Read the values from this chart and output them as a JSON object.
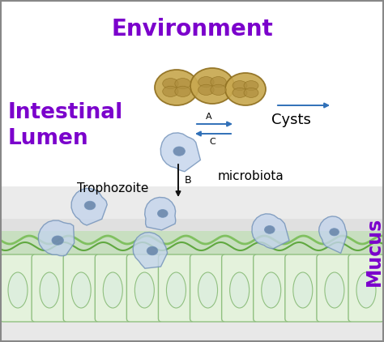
{
  "title": "Environment",
  "title_color": "#7B00CC",
  "title_fontsize": 20,
  "intestinal_lumen_text": "Intestinal\nLumen",
  "intestinal_lumen_color": "#7B00CC",
  "intestinal_lumen_fontsize": 19,
  "mucus_text": "Mucus",
  "mucus_color": "#7B00CC",
  "mucus_fontsize": 17,
  "cysts_label": "Cysts",
  "microbiota_label": "microbiota",
  "trophozoite_label": "Trophozoite",
  "arrow_A_label": "A",
  "arrow_C_label": "C",
  "arrow_B_label": "B",
  "bg_color": "#FFFFFF",
  "white_zone_color": "#FFFFFF",
  "gray_zone_color": "#DCDCDC",
  "intestine_bg_top": "#C8E0C0",
  "intestine_bg_bot": "#D8EDD0",
  "cell_color": "#E4F2DC",
  "cell_border": "#90C080",
  "cyst_fill": "#C8A850",
  "cyst_inner": "#B09040",
  "cyst_border": "#907020",
  "amoeba_fill": "#C4D4EC",
  "amoeba_border": "#7090B8",
  "nucleus_color": "#5878A0",
  "arrow_blue": "#3070B8",
  "arrow_black": "#111111",
  "wave_color1": "#80C060",
  "wave_color2": "#60A840",
  "border_color": "#888888"
}
